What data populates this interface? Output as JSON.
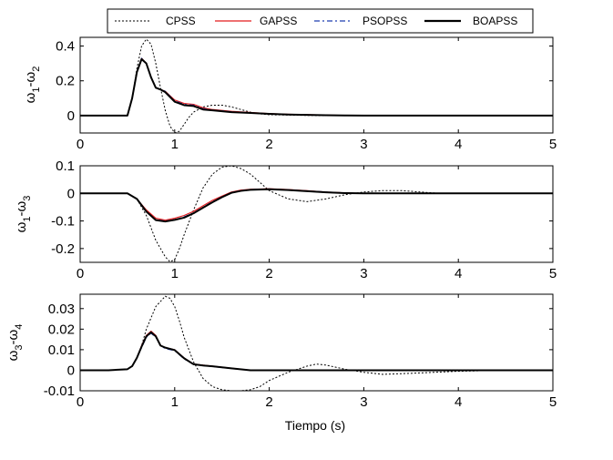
{
  "chart_data": {
    "type": "line",
    "xlabel": "Tiempo (s)",
    "legend": {
      "placement": "top-center",
      "entries": [
        {
          "name": "CPSS",
          "color": "#000000",
          "style": "dotted"
        },
        {
          "name": "GAPSS",
          "color": "#e31a1c",
          "style": "solid"
        },
        {
          "name": "PSOPSS",
          "color": "#1f3fb0",
          "style": "dashdot"
        },
        {
          "name": "BOAPSS",
          "color": "#000000",
          "style": "solid-thick"
        }
      ]
    },
    "panels": [
      {
        "ylabel_main": "ω",
        "ylabel_sub1": "1",
        "ylabel_mid": "-ω",
        "ylabel_sub2": "2",
        "xlim": [
          0,
          5
        ],
        "ylim": [
          -0.1,
          0.45
        ],
        "xticks": [
          0,
          1,
          2,
          3,
          4,
          5
        ],
        "xtick_labels": [
          "0",
          "1",
          "2",
          "3",
          "4",
          "5"
        ],
        "yticks": [
          0,
          0.2,
          0.4
        ],
        "ytick_labels": [
          "0",
          "0.2",
          "0.4"
        ],
        "series": [
          {
            "name": "CPSS",
            "x": [
              0,
              0.5,
              0.55,
              0.6,
              0.65,
              0.7,
              0.75,
              0.8,
              0.85,
              0.9,
              0.95,
              1.0,
              1.05,
              1.1,
              1.15,
              1.2,
              1.3,
              1.4,
              1.5,
              1.6,
              1.7,
              1.8,
              1.9,
              2.0,
              2.2,
              2.4,
              2.6,
              2.8,
              3.0,
              3.5,
              4.0,
              5.0
            ],
            "y": [
              0,
              0,
              0.1,
              0.27,
              0.4,
              0.44,
              0.41,
              0.3,
              0.16,
              0.03,
              -0.06,
              -0.1,
              -0.09,
              -0.05,
              -0.01,
              0.02,
              0.05,
              0.06,
              0.06,
              0.05,
              0.035,
              0.02,
              0.01,
              0.005,
              0.003,
              0.001,
              0,
              0,
              0,
              0,
              0,
              0
            ]
          },
          {
            "name": "GAPSS",
            "x": [
              0,
              0.5,
              0.55,
              0.6,
              0.65,
              0.7,
              0.75,
              0.8,
              0.85,
              0.9,
              1.0,
              1.1,
              1.2,
              1.3,
              1.4,
              1.5,
              1.6,
              1.8,
              2.0,
              2.2,
              2.4,
              2.6,
              2.8,
              3.0,
              4.0,
              5.0
            ],
            "y": [
              0,
              0,
              0.1,
              0.25,
              0.33,
              0.3,
              0.22,
              0.16,
              0.15,
              0.14,
              0.09,
              0.07,
              0.065,
              0.045,
              0.035,
              0.03,
              0.025,
              0.018,
              0.012,
              0.008,
              0.006,
              0.003,
              0.001,
              0,
              0,
              0
            ]
          },
          {
            "name": "PSOPSS",
            "x": [
              0,
              0.5,
              0.55,
              0.6,
              0.65,
              0.7,
              0.75,
              0.8,
              0.85,
              0.9,
              1.0,
              1.1,
              1.2,
              1.3,
              1.4,
              1.5,
              1.6,
              1.8,
              2.0,
              2.2,
              2.4,
              2.6,
              2.8,
              3.0,
              4.0,
              5.0
            ],
            "y": [
              0,
              0,
              0.1,
              0.25,
              0.33,
              0.3,
              0.22,
              0.16,
              0.15,
              0.14,
              0.085,
              0.065,
              0.06,
              0.04,
              0.032,
              0.028,
              0.022,
              0.016,
              0.011,
              0.007,
              0.005,
              0.002,
              0.001,
              0,
              0,
              0
            ]
          },
          {
            "name": "BOAPSS",
            "x": [
              0,
              0.5,
              0.55,
              0.6,
              0.65,
              0.7,
              0.75,
              0.8,
              0.85,
              0.9,
              1.0,
              1.1,
              1.2,
              1.3,
              1.4,
              1.5,
              1.6,
              1.8,
              2.0,
              2.2,
              2.4,
              2.6,
              2.8,
              3.0,
              4.0,
              5.0
            ],
            "y": [
              0,
              0,
              0.1,
              0.25,
              0.325,
              0.3,
              0.22,
              0.16,
              0.15,
              0.135,
              0.08,
              0.06,
              0.055,
              0.035,
              0.03,
              0.025,
              0.02,
              0.015,
              0.01,
              0.006,
              0.004,
              0.002,
              0.001,
              0,
              0,
              0
            ]
          }
        ]
      },
      {
        "ylabel_main": "ω",
        "ylabel_sub1": "1",
        "ylabel_mid": "-ω",
        "ylabel_sub2": "3",
        "xlim": [
          0,
          5
        ],
        "ylim": [
          -0.25,
          0.1
        ],
        "xticks": [
          0,
          1,
          2,
          3,
          4,
          5
        ],
        "xtick_labels": [
          "0",
          "1",
          "2",
          "3",
          "4",
          "5"
        ],
        "yticks": [
          -0.2,
          -0.1,
          0,
          0.1
        ],
        "ytick_labels": [
          "-0.2",
          "-0.1",
          "0",
          "0.1"
        ],
        "series": [
          {
            "name": "CPSS",
            "x": [
              0,
              0.5,
              0.6,
              0.7,
              0.8,
              0.9,
              0.95,
              1.0,
              1.05,
              1.1,
              1.2,
              1.3,
              1.4,
              1.5,
              1.6,
              1.7,
              1.8,
              1.9,
              2.0,
              2.2,
              2.4,
              2.6,
              2.8,
              3.0,
              3.2,
              3.4,
              3.6,
              3.8,
              4.0,
              5.0
            ],
            "y": [
              0,
              0,
              -0.02,
              -0.08,
              -0.17,
              -0.23,
              -0.248,
              -0.24,
              -0.2,
              -0.15,
              -0.06,
              0.02,
              0.07,
              0.095,
              0.1,
              0.09,
              0.07,
              0.04,
              0.01,
              -0.02,
              -0.03,
              -0.02,
              -0.005,
              0.005,
              0.01,
              0.01,
              0.005,
              0,
              0,
              0
            ]
          },
          {
            "name": "GAPSS",
            "x": [
              0,
              0.5,
              0.6,
              0.7,
              0.8,
              0.9,
              1.0,
              1.1,
              1.2,
              1.3,
              1.4,
              1.5,
              1.6,
              1.7,
              1.8,
              2.0,
              2.2,
              2.4,
              2.6,
              2.8,
              3.0,
              4.0,
              5.0
            ],
            "y": [
              0,
              0,
              -0.02,
              -0.06,
              -0.09,
              -0.097,
              -0.09,
              -0.08,
              -0.065,
              -0.045,
              -0.025,
              -0.01,
              0.005,
              0.012,
              0.015,
              0.017,
              0.014,
              0.01,
              0.005,
              0.002,
              0,
              0,
              0
            ]
          },
          {
            "name": "PSOPSS",
            "x": [
              0,
              0.5,
              0.6,
              0.7,
              0.8,
              0.9,
              1.0,
              1.1,
              1.2,
              1.3,
              1.4,
              1.5,
              1.6,
              1.7,
              1.8,
              2.0,
              2.2,
              2.4,
              2.6,
              2.8,
              3.0,
              4.0,
              5.0
            ],
            "y": [
              0,
              0,
              -0.02,
              -0.065,
              -0.095,
              -0.1,
              -0.095,
              -0.085,
              -0.07,
              -0.05,
              -0.03,
              -0.012,
              0.003,
              0.01,
              0.014,
              0.016,
              0.013,
              0.009,
              0.005,
              0.002,
              0,
              0,
              0
            ]
          },
          {
            "name": "BOAPSS",
            "x": [
              0,
              0.5,
              0.6,
              0.7,
              0.8,
              0.9,
              1.0,
              1.1,
              1.2,
              1.3,
              1.4,
              1.5,
              1.6,
              1.7,
              1.8,
              2.0,
              2.2,
              2.4,
              2.6,
              2.8,
              3.0,
              4.0,
              5.0
            ],
            "y": [
              0,
              0,
              -0.02,
              -0.066,
              -0.097,
              -0.102,
              -0.096,
              -0.088,
              -0.072,
              -0.052,
              -0.032,
              -0.014,
              0.002,
              0.009,
              0.013,
              0.015,
              0.012,
              0.008,
              0.004,
              0.001,
              0,
              0,
              0
            ]
          }
        ]
      },
      {
        "ylabel_main": "ω",
        "ylabel_sub1": "3",
        "ylabel_mid": "-ω",
        "ylabel_sub2": "4",
        "xlim": [
          0,
          5
        ],
        "ylim": [
          -0.01,
          0.037
        ],
        "xticks": [
          0,
          1,
          2,
          3,
          4,
          5
        ],
        "xtick_labels": [
          "0",
          "1",
          "2",
          "3",
          "4",
          "5"
        ],
        "yticks": [
          -0.01,
          0,
          0.01,
          0.02,
          0.03
        ],
        "ytick_labels": [
          "-0.01",
          "0",
          "0.01",
          "0.02",
          "0.03"
        ],
        "series": [
          {
            "name": "CPSS",
            "x": [
              0,
              0.3,
              0.5,
              0.55,
              0.6,
              0.65,
              0.7,
              0.8,
              0.9,
              0.95,
              1.0,
              1.05,
              1.1,
              1.2,
              1.3,
              1.4,
              1.5,
              1.6,
              1.7,
              1.8,
              1.9,
              2.0,
              2.2,
              2.4,
              2.5,
              2.6,
              2.8,
              3.0,
              3.2,
              3.5,
              4.0,
              4.5,
              5.0
            ],
            "y": [
              0,
              0,
              0.0005,
              0.002,
              0.006,
              0.012,
              0.02,
              0.031,
              0.036,
              0.035,
              0.031,
              0.024,
              0.016,
              0.004,
              -0.004,
              -0.008,
              -0.0095,
              -0.01,
              -0.01,
              -0.0095,
              -0.008,
              -0.005,
              -0.001,
              0.002,
              0.003,
              0.0025,
              0.0005,
              -0.001,
              -0.002,
              -0.0015,
              -0.0005,
              0,
              0
            ]
          },
          {
            "name": "GAPSS",
            "x": [
              0,
              0.3,
              0.5,
              0.55,
              0.6,
              0.65,
              0.7,
              0.75,
              0.8,
              0.85,
              0.9,
              1.0,
              1.1,
              1.2,
              1.3,
              1.4,
              1.6,
              1.8,
              2.0,
              3.0,
              4.0,
              5.0
            ],
            "y": [
              0,
              0,
              0.0005,
              0.002,
              0.006,
              0.012,
              0.017,
              0.019,
              0.017,
              0.012,
              0.011,
              0.01,
              0.006,
              0.003,
              0.0025,
              0.002,
              0.001,
              0,
              0,
              0,
              0,
              0
            ]
          },
          {
            "name": "PSOPSS",
            "x": [
              0,
              0.3,
              0.5,
              0.55,
              0.6,
              0.65,
              0.7,
              0.75,
              0.8,
              0.85,
              0.9,
              1.0,
              1.1,
              1.2,
              1.3,
              1.4,
              1.6,
              1.8,
              2.0,
              3.0,
              4.0,
              5.0
            ],
            "y": [
              0,
              0,
              0.0005,
              0.002,
              0.006,
              0.011,
              0.016,
              0.018,
              0.016,
              0.012,
              0.0105,
              0.0095,
              0.0055,
              0.0028,
              0.0022,
              0.0018,
              0.0008,
              0,
              0,
              0,
              0,
              0
            ]
          },
          {
            "name": "BOAPSS",
            "x": [
              0,
              0.3,
              0.5,
              0.55,
              0.6,
              0.65,
              0.7,
              0.75,
              0.8,
              0.85,
              0.9,
              1.0,
              1.1,
              1.2,
              1.3,
              1.4,
              1.6,
              1.8,
              2.0,
              3.0,
              4.0,
              5.0
            ],
            "y": [
              0,
              0,
              0.0005,
              0.002,
              0.006,
              0.0115,
              0.0165,
              0.0185,
              0.0165,
              0.012,
              0.011,
              0.0098,
              0.0058,
              0.0029,
              0.0023,
              0.0019,
              0.0009,
              0,
              0,
              0,
              0,
              0
            ]
          }
        ]
      }
    ]
  }
}
